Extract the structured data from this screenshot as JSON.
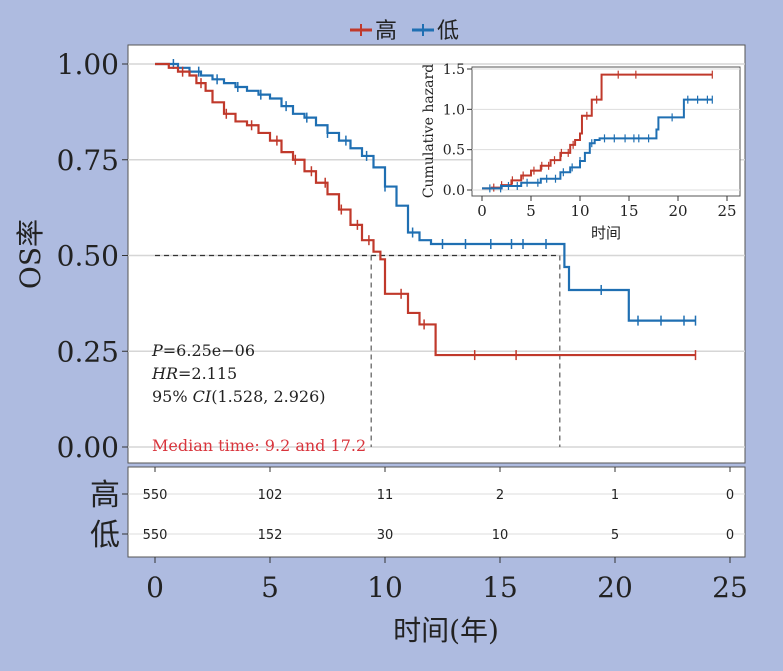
{
  "chart_data": {
    "type": "line",
    "legend": {
      "placement": "top",
      "entries": [
        {
          "name": "高",
          "color": "#c0392b"
        },
        {
          "name": "低",
          "color": "#1f6fb2"
        }
      ]
    },
    "xlabel": "时间(年)",
    "ylabel": "OS率",
    "xlim": [
      0,
      25
    ],
    "ylim": [
      0,
      1
    ],
    "x_ticks": [
      "0",
      "5",
      "10",
      "15",
      "20",
      "25"
    ],
    "y_ticks": [
      "0.00",
      "0.25",
      "0.50",
      "0.75",
      "1.00"
    ],
    "grid": true,
    "series": [
      {
        "name": "高",
        "color": "#c0392b",
        "points": [
          [
            0,
            1.0
          ],
          [
            0.3,
            1.0
          ],
          [
            0.6,
            0.99
          ],
          [
            1.0,
            0.98
          ],
          [
            1.5,
            0.97
          ],
          [
            1.8,
            0.95
          ],
          [
            2.2,
            0.93
          ],
          [
            2.5,
            0.9
          ],
          [
            3.0,
            0.87
          ],
          [
            3.5,
            0.85
          ],
          [
            4.0,
            0.84
          ],
          [
            4.5,
            0.82
          ],
          [
            5.0,
            0.8
          ],
          [
            5.5,
            0.77
          ],
          [
            6.0,
            0.75
          ],
          [
            6.5,
            0.72
          ],
          [
            7.0,
            0.69
          ],
          [
            7.5,
            0.66
          ],
          [
            8.0,
            0.62
          ],
          [
            8.5,
            0.58
          ],
          [
            9.0,
            0.54
          ],
          [
            9.5,
            0.51
          ],
          [
            9.8,
            0.49
          ],
          [
            10.0,
            0.4
          ],
          [
            10.5,
            0.4
          ],
          [
            11.0,
            0.35
          ],
          [
            11.5,
            0.32
          ],
          [
            12.0,
            0.32
          ],
          [
            12.2,
            0.24
          ],
          [
            23.5,
            0.24
          ]
        ],
        "censor_x": [
          1.2,
          2.0,
          3.1,
          4.2,
          5.3,
          6.1,
          6.8,
          7.4,
          8.1,
          8.8,
          9.3,
          10.7,
          11.7,
          13.9,
          15.7,
          23.5
        ]
      },
      {
        "name": "低",
        "color": "#1f6fb2",
        "points": [
          [
            0,
            1.0
          ],
          [
            0.5,
            1.0
          ],
          [
            1.0,
            0.99
          ],
          [
            1.5,
            0.98
          ],
          [
            2.0,
            0.97
          ],
          [
            2.5,
            0.96
          ],
          [
            3.0,
            0.95
          ],
          [
            3.5,
            0.94
          ],
          [
            4.0,
            0.93
          ],
          [
            4.5,
            0.92
          ],
          [
            5.0,
            0.91
          ],
          [
            5.5,
            0.89
          ],
          [
            6.0,
            0.87
          ],
          [
            6.5,
            0.86
          ],
          [
            7.0,
            0.84
          ],
          [
            7.5,
            0.82
          ],
          [
            8.0,
            0.8
          ],
          [
            8.5,
            0.78
          ],
          [
            9.0,
            0.76
          ],
          [
            9.5,
            0.73
          ],
          [
            10.0,
            0.68
          ],
          [
            10.5,
            0.63
          ],
          [
            11.0,
            0.56
          ],
          [
            11.5,
            0.54
          ],
          [
            12.0,
            0.53
          ],
          [
            14.0,
            0.53
          ],
          [
            17.6,
            0.53
          ],
          [
            17.8,
            0.47
          ],
          [
            18.0,
            0.41
          ],
          [
            19.0,
            0.41
          ],
          [
            20.5,
            0.41
          ],
          [
            20.6,
            0.33
          ],
          [
            23.5,
            0.33
          ]
        ],
        "censor_x": [
          0.8,
          1.9,
          2.7,
          3.6,
          4.6,
          5.7,
          6.6,
          7.5,
          8.3,
          9.2,
          10.0,
          11.2,
          12.5,
          13.5,
          14.6,
          15.5,
          16.0,
          17.0,
          19.4,
          21.0,
          22.0,
          23.0,
          23.5
        ]
      }
    ],
    "median_line": {
      "y": 0.5,
      "x_values": [
        9.2,
        17.2
      ]
    },
    "annotations": {
      "p_label": "P",
      "p_value": "=6.25e−06",
      "hr_label": "HR",
      "hr_value": "=2.115",
      "ci_prefix": "95% ",
      "ci_label": "CI",
      "ci_value": "(1.528, 2.926)",
      "median": "Median time: 9.2 and 17.2"
    },
    "inset": {
      "type": "line",
      "ylabel": "Cumulative hazard",
      "xlabel": "时间",
      "xlim": [
        0,
        25
      ],
      "ylim": [
        0,
        1.5
      ],
      "x_ticks": [
        "0",
        "5",
        "10",
        "15",
        "20",
        "25"
      ],
      "y_ticks": [
        "0.0",
        "0.5",
        "1.0",
        "1.5"
      ],
      "series": [
        {
          "name": "高",
          "color": "#c0392b",
          "points": [
            [
              0,
              0.02
            ],
            [
              1,
              0.03
            ],
            [
              2,
              0.06
            ],
            [
              3,
              0.12
            ],
            [
              4,
              0.18
            ],
            [
              5,
              0.24
            ],
            [
              6,
              0.3
            ],
            [
              7,
              0.37
            ],
            [
              8,
              0.46
            ],
            [
              9,
              0.56
            ],
            [
              9.5,
              0.62
            ],
            [
              10,
              0.7
            ],
            [
              10.2,
              0.92
            ],
            [
              11,
              0.92
            ],
            [
              11.2,
              1.12
            ],
            [
              12,
              1.12
            ],
            [
              12.2,
              1.43
            ],
            [
              23.5,
              1.43
            ]
          ]
        },
        {
          "name": "低",
          "color": "#1f6fb2",
          "points": [
            [
              0,
              0.02
            ],
            [
              2,
              0.05
            ],
            [
              4,
              0.09
            ],
            [
              6,
              0.14
            ],
            [
              8,
              0.22
            ],
            [
              9,
              0.28
            ],
            [
              10,
              0.36
            ],
            [
              10.5,
              0.46
            ],
            [
              11,
              0.58
            ],
            [
              11.5,
              0.62
            ],
            [
              12,
              0.64
            ],
            [
              14,
              0.64
            ],
            [
              17.6,
              0.64
            ],
            [
              17.8,
              0.75
            ],
            [
              18,
              0.9
            ],
            [
              20.5,
              0.9
            ],
            [
              20.6,
              1.12
            ],
            [
              23.5,
              1.12
            ]
          ]
        }
      ]
    },
    "risk_table": {
      "rows": [
        {
          "label": "高",
          "counts": [
            "550",
            "102",
            "11",
            "2",
            "1",
            "0"
          ]
        },
        {
          "label": "低",
          "counts": [
            "550",
            "152",
            "30",
            "10",
            "5",
            "0"
          ]
        }
      ]
    }
  }
}
